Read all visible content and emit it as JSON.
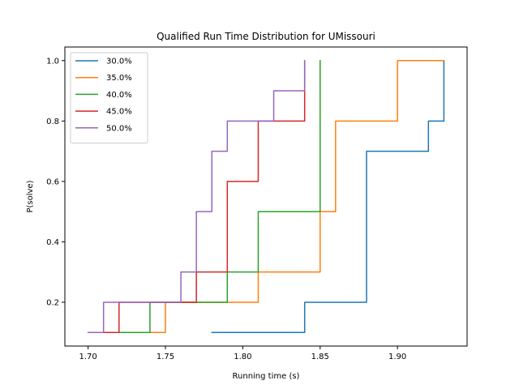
{
  "chart_data": {
    "type": "line",
    "step": "post",
    "title": "Qualified Run Time Distribution for UMissouri",
    "xlabel": "Running time (s)",
    "ylabel": "P(solve)",
    "xlim": [
      1.685,
      1.945
    ],
    "ylim": [
      0.055,
      1.045
    ],
    "xticks": [
      1.7,
      1.75,
      1.8,
      1.85,
      1.9
    ],
    "xtick_labels": [
      "1.70",
      "1.75",
      "1.80",
      "1.85",
      "1.90"
    ],
    "yticks": [
      0.2,
      0.4,
      0.6,
      0.8,
      1.0
    ],
    "ytick_labels": [
      "0.2",
      "0.4",
      "0.6",
      "0.8",
      "1.0"
    ],
    "grid": false,
    "legend_position": "top-left",
    "series": [
      {
        "name": "30.0%",
        "color": "#1f77b4",
        "x": [
          1.78,
          1.84,
          1.88,
          1.88,
          1.92,
          1.93,
          1.93
        ],
        "y": [
          0.1,
          0.2,
          0.6,
          0.7,
          0.8,
          0.9,
          1.0
        ]
      },
      {
        "name": "35.0%",
        "color": "#ff7f0e",
        "x": [
          1.73,
          1.75,
          1.81,
          1.85,
          1.86,
          1.86,
          1.9,
          1.93
        ],
        "y": [
          0.1,
          0.2,
          0.3,
          0.5,
          0.6,
          0.8,
          1.0,
          1.0
        ]
      },
      {
        "name": "40.0%",
        "color": "#2ca02c",
        "x": [
          1.72,
          1.74,
          1.79,
          1.81,
          1.81,
          1.85,
          1.85
        ],
        "y": [
          0.1,
          0.2,
          0.3,
          0.4,
          0.5,
          0.9,
          1.0
        ]
      },
      {
        "name": "45.0%",
        "color": "#d62728",
        "x": [
          1.71,
          1.72,
          1.77,
          1.79,
          1.79,
          1.81,
          1.84,
          1.84
        ],
        "y": [
          0.1,
          0.2,
          0.3,
          0.5,
          0.6,
          0.8,
          0.9,
          1.0
        ]
      },
      {
        "name": "50.0%",
        "color": "#9467bd",
        "x": [
          1.7,
          1.71,
          1.76,
          1.77,
          1.77,
          1.78,
          1.78,
          1.79,
          1.82,
          1.84
        ],
        "y": [
          0.1,
          0.2,
          0.3,
          0.4,
          0.5,
          0.6,
          0.7,
          0.8,
          0.9,
          1.0
        ]
      }
    ]
  }
}
